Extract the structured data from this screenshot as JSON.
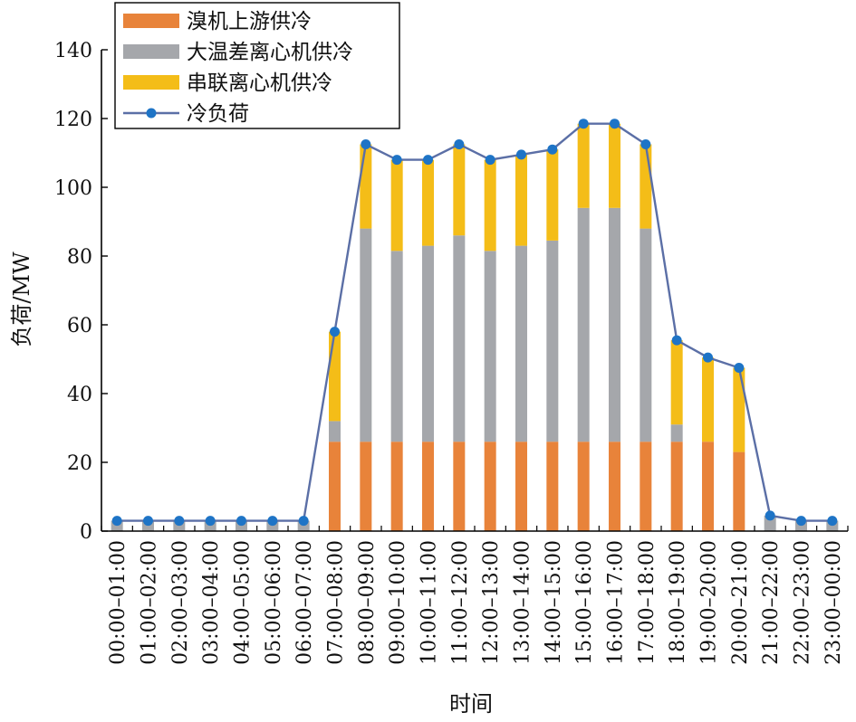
{
  "chart_data": {
    "type": "bar",
    "stacked": true,
    "title": "",
    "xlabel": "时间",
    "ylabel": "负荷/MW",
    "ylim": [
      0,
      140
    ],
    "yticks": [
      0,
      20,
      40,
      60,
      80,
      100,
      120,
      140
    ],
    "grid": false,
    "legend_position": "top-left",
    "categories": [
      "00:00–01:00",
      "01:00–02:00",
      "02:00–03:00",
      "03:00–04:00",
      "04:00–05:00",
      "05:00–06:00",
      "06:00–07:00",
      "07:00–08:00",
      "08:00–09:00",
      "09:00–10:00",
      "10:00–11:00",
      "11:00–12:00",
      "12:00–13:00",
      "13:00–14:00",
      "14:00–15:00",
      "15:00–16:00",
      "16:00–17:00",
      "17:00–18:00",
      "18:00–19:00",
      "19:00–20:00",
      "20:00–21:00",
      "21:00–22:00",
      "22:00–23:00",
      "23:00–00:00"
    ],
    "series": [
      {
        "name": "溴机上游供冷",
        "kind": "bar",
        "color": "#E8833A",
        "values": [
          0,
          0,
          0,
          0,
          0,
          0,
          0,
          26,
          26,
          26,
          26,
          26,
          26,
          26,
          26,
          26,
          26,
          26,
          26,
          26,
          23,
          0,
          0,
          0
        ]
      },
      {
        "name": "大温差离心机供冷",
        "kind": "bar",
        "color": "#A5A7AB",
        "values": [
          3,
          3,
          3,
          3,
          3,
          3,
          3,
          6,
          62,
          55.5,
          57,
          60,
          55.5,
          57,
          58.5,
          68,
          68,
          62,
          5,
          0,
          0,
          4.5,
          3,
          3
        ]
      },
      {
        "name": "串联离心机供冷",
        "kind": "bar",
        "color": "#F4BD18",
        "values": [
          0,
          0,
          0,
          0,
          0,
          0,
          0,
          26,
          24.5,
          26.5,
          25,
          26.5,
          26.5,
          26.5,
          26.5,
          24.5,
          24.5,
          24.5,
          24.5,
          24.5,
          24.5,
          0,
          0,
          0
        ]
      },
      {
        "name": "冷负荷",
        "kind": "line",
        "color": "#5B6FA6",
        "marker_color": "#1E74C6",
        "values": [
          3,
          3,
          3,
          3,
          3,
          3,
          3,
          58,
          112.5,
          108,
          108,
          112.5,
          108,
          109.5,
          111,
          118.5,
          118.5,
          112.5,
          55.5,
          50.5,
          47.5,
          4.5,
          3,
          3
        ]
      }
    ]
  }
}
